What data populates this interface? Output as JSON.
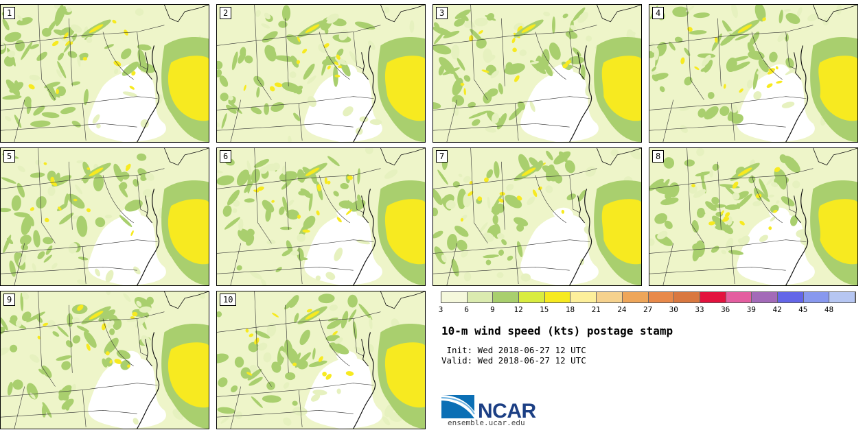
{
  "panels": [
    {
      "label": "1"
    },
    {
      "label": "2"
    },
    {
      "label": "3"
    },
    {
      "label": "4"
    },
    {
      "label": "5"
    },
    {
      "label": "6"
    },
    {
      "label": "7"
    },
    {
      "label": "8"
    },
    {
      "label": "9"
    },
    {
      "label": "10"
    }
  ],
  "legend": {
    "colors": [
      "#f5f8dc",
      "#dbebb0",
      "#a9cf6e",
      "#d9ec40",
      "#f7ea20",
      "#fdef9b",
      "#f6d28e",
      "#eea65a",
      "#e8894a",
      "#d97840",
      "#e3123e",
      "#e45ea0",
      "#a36ab8",
      "#6466e8",
      "#8898ee",
      "#b6c6f2"
    ],
    "ticks": [
      "3",
      "6",
      "9",
      "12",
      "15",
      "18",
      "21",
      "24",
      "27",
      "30",
      "33",
      "36",
      "39",
      "42",
      "45",
      "48"
    ]
  },
  "title": "10-m wind speed (kts) postage stamp",
  "init": " Init: Wed 2018-06-27 12 UTC",
  "valid": "Valid: Wed 2018-06-27 12 UTC",
  "logo": {
    "text": "NCAR",
    "url": "ensemble.ucar.edu"
  },
  "colors": {
    "calm": "#ffffff",
    "light": "#eef5c9",
    "green": "#a9cf6e",
    "yellow": "#f7ea20"
  }
}
